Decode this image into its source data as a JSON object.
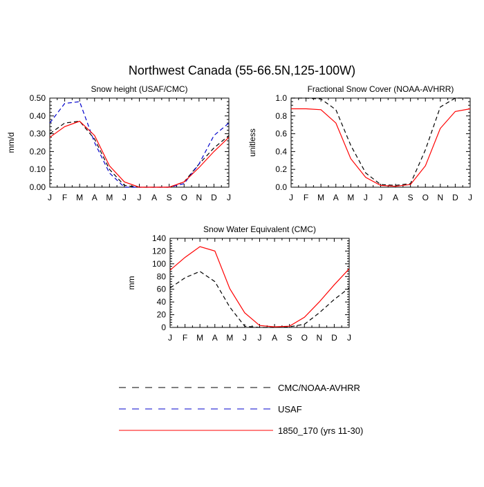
{
  "title": "Northwest Canada (55-66.5N,125-100W)",
  "legend": [
    {
      "label": "CMC/NOAA-AVHRR",
      "color": "#000000",
      "dash": "dashed"
    },
    {
      "label": "USAF",
      "color": "#0000cc",
      "dash": "dashed"
    },
    {
      "label": "1850_170 (yrs 11-30)",
      "color": "#ff0000",
      "dash": "solid"
    }
  ],
  "chart_data": [
    {
      "type": "line",
      "title": "Snow height (USAF/CMC)",
      "ylabel": "mm/d",
      "xlabel": "",
      "categories": [
        "J",
        "F",
        "M",
        "A",
        "M",
        "J",
        "J",
        "A",
        "S",
        "O",
        "N",
        "D",
        "J"
      ],
      "ylim": [
        0,
        0.5
      ],
      "yticks": [
        "0.00",
        "0.10",
        "0.20",
        "0.30",
        "0.40",
        "0.50"
      ],
      "series": [
        {
          "name": "CMC/NOAA-AVHRR",
          "color": "#000000",
          "dash": "dashed",
          "values": [
            0.3,
            0.36,
            0.37,
            0.27,
            0.1,
            0.01,
            0.0,
            0.0,
            0.0,
            0.03,
            0.13,
            0.22,
            0.29
          ]
        },
        {
          "name": "USAF",
          "color": "#0000cc",
          "dash": "dashed",
          "values": [
            0.36,
            0.47,
            0.48,
            0.25,
            0.08,
            0.0,
            0.0,
            0.0,
            0.0,
            0.02,
            0.13,
            0.29,
            0.36
          ]
        },
        {
          "name": "1850_170 (yrs 11-30)",
          "color": "#ff0000",
          "dash": "solid",
          "values": [
            0.28,
            0.34,
            0.37,
            0.29,
            0.12,
            0.03,
            0.0,
            0.0,
            0.0,
            0.03,
            0.11,
            0.2,
            0.28
          ]
        }
      ]
    },
    {
      "type": "line",
      "title": "Fractional Snow Cover (NOAA-AVHRR)",
      "ylabel": "unitless",
      "xlabel": "",
      "categories": [
        "J",
        "F",
        "M",
        "A",
        "M",
        "J",
        "J",
        "A",
        "S",
        "O",
        "N",
        "D",
        "J"
      ],
      "ylim": [
        0,
        1
      ],
      "yticks": [
        "0.0",
        "0.2",
        "0.4",
        "0.6",
        "0.8",
        "1.0"
      ],
      "series": [
        {
          "name": "CMC/NOAA-AVHRR",
          "color": "#000000",
          "dash": "dashed",
          "values": [
            1.0,
            1.0,
            0.99,
            0.87,
            0.47,
            0.16,
            0.03,
            0.02,
            0.04,
            0.42,
            0.9,
            1.0,
            1.0
          ]
        },
        {
          "name": "1850_170 (yrs 11-30)",
          "color": "#ff0000",
          "dash": "solid",
          "values": [
            0.88,
            0.88,
            0.87,
            0.72,
            0.32,
            0.11,
            0.02,
            0.01,
            0.03,
            0.24,
            0.66,
            0.85,
            0.88
          ]
        }
      ]
    },
    {
      "type": "line",
      "title": "Snow Water Equivalent (CMC)",
      "ylabel": "mm",
      "xlabel": "",
      "categories": [
        "J",
        "F",
        "M",
        "A",
        "M",
        "J",
        "J",
        "A",
        "S",
        "O",
        "N",
        "D",
        "J"
      ],
      "ylim": [
        0,
        140
      ],
      "yticks": [
        "0",
        "20",
        "40",
        "60",
        "80",
        "100",
        "120",
        "140"
      ],
      "series": [
        {
          "name": "CMC/NOAA-AVHRR",
          "color": "#000000",
          "dash": "dashed",
          "values": [
            62,
            78,
            88,
            72,
            32,
            2,
            0,
            0,
            1,
            5,
            23,
            44,
            62
          ]
        },
        {
          "name": "1850_170 (yrs 11-30)",
          "color": "#ff0000",
          "dash": "solid",
          "values": [
            90,
            110,
            127,
            120,
            61,
            23,
            3,
            1,
            2,
            16,
            40,
            67,
            92
          ]
        }
      ]
    }
  ]
}
